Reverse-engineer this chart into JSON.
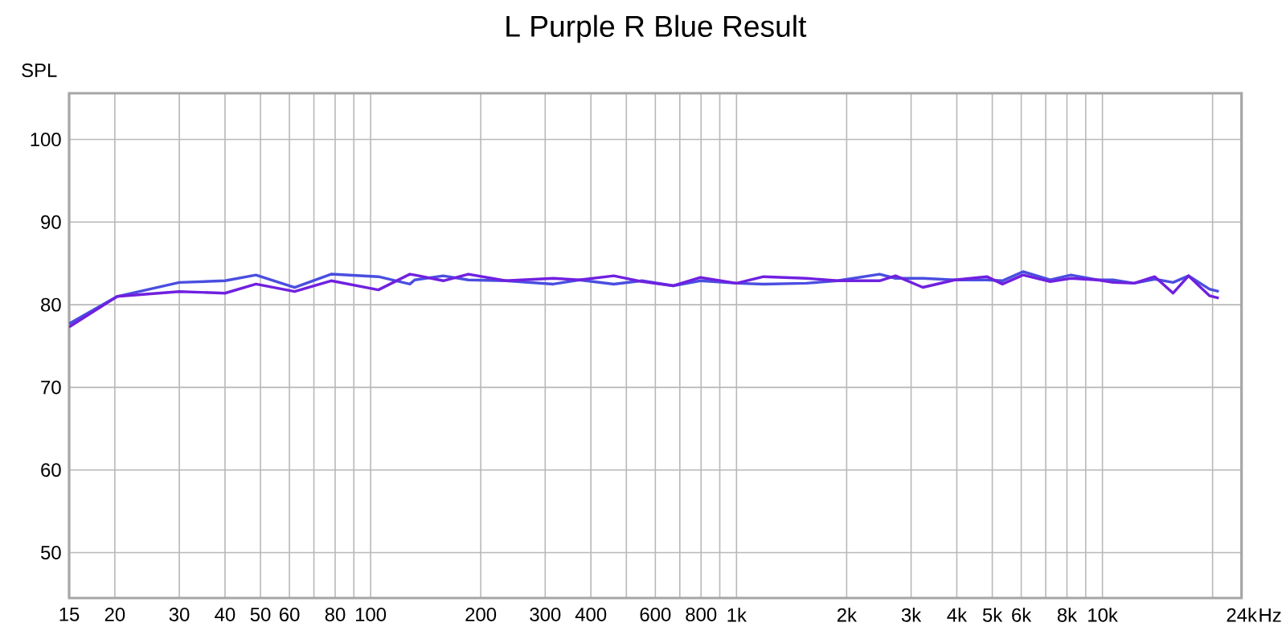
{
  "chart_data": {
    "type": "line",
    "title": "L Purple R Blue Result",
    "ylabel": "SPL",
    "log": "x",
    "grid": true,
    "xlim": [
      15,
      24000
    ],
    "ylim": [
      44.5,
      105.6
    ],
    "xticks": [
      15,
      20,
      30,
      40,
      50,
      60,
      {
        "value": 70,
        "label": null
      },
      80,
      {
        "value": 90,
        "label": null
      },
      100,
      200,
      300,
      400,
      {
        "value": 500,
        "label": null
      },
      600,
      {
        "value": 700,
        "label": null
      },
      800,
      {
        "value": 900,
        "label": null
      },
      {
        "value": 1000,
        "label": "1k"
      },
      {
        "value": 2000,
        "label": "2k"
      },
      {
        "value": 3000,
        "label": "3k"
      },
      {
        "value": 4000,
        "label": "4k"
      },
      {
        "value": 5000,
        "label": "5k"
      },
      {
        "value": 6000,
        "label": "6k"
      },
      {
        "value": 7000,
        "label": null
      },
      {
        "value": 8000,
        "label": "8k"
      },
      {
        "value": 9000,
        "label": null
      },
      {
        "value": 10000,
        "label": "10k"
      },
      {
        "value": 20000,
        "label": null
      },
      {
        "value": 24000,
        "label": "24k"
      }
    ],
    "xlabel": "Hz",
    "yticks": [
      50,
      60,
      70,
      80,
      90,
      100
    ],
    "series": [
      {
        "color": "#4a4ee0",
        "x": [
          15,
          20.3,
          30,
          40,
          48.6,
          62,
          78,
          105,
          128,
          132,
          158,
          185,
          234,
          316,
          372,
          462,
          552,
          672,
          797,
          1000,
          1186,
          1551,
          1890,
          2460,
          2720,
          3230,
          3950,
          4830,
          5330,
          6070,
          7200,
          8200,
          9700,
          10700,
          12200,
          13900,
          15600,
          17200,
          19600,
          20800
        ],
        "values": [
          77.7,
          81.0,
          82.7,
          82.9,
          83.6,
          82.1,
          83.7,
          83.4,
          82.5,
          83.0,
          83.5,
          83.0,
          82.9,
          82.5,
          83.0,
          82.5,
          82.9,
          82.3,
          82.9,
          82.6,
          82.5,
          82.6,
          82.9,
          83.7,
          83.2,
          83.2,
          83.0,
          83.0,
          82.9,
          84.0,
          83.0,
          83.6,
          83.0,
          83.0,
          82.6,
          83.1,
          82.7,
          83.5,
          81.9,
          81.6
        ]
      },
      {
        "color": "#7020e0",
        "x": [
          15,
          20.3,
          30,
          40,
          48.6,
          62,
          78,
          105,
          128,
          132,
          158,
          185,
          234,
          316,
          372,
          462,
          552,
          672,
          797,
          1000,
          1186,
          1551,
          1890,
          2460,
          2720,
          3230,
          3950,
          4830,
          5330,
          6070,
          7200,
          8200,
          9700,
          10700,
          12200,
          13900,
          15600,
          17200,
          19600,
          20800
        ],
        "values": [
          77.3,
          81.0,
          81.6,
          81.4,
          82.5,
          81.6,
          82.9,
          81.8,
          83.7,
          83.6,
          82.9,
          83.7,
          82.9,
          83.2,
          83.0,
          83.5,
          82.8,
          82.3,
          83.3,
          82.6,
          83.4,
          83.2,
          82.9,
          82.9,
          83.5,
          82.1,
          83.0,
          83.4,
          82.5,
          83.6,
          82.8,
          83.2,
          83.0,
          82.7,
          82.6,
          83.4,
          81.4,
          83.5,
          81.1,
          80.8
        ]
      }
    ]
  }
}
